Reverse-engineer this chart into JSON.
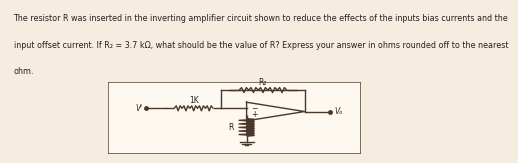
{
  "bg_color": "#f5ede0",
  "box_color": "#fdf8f0",
  "line_color": "#4a3828",
  "text_color": "#2a2020",
  "title_text_line1": "The resistor R was inserted in the inverting amplifier circuit shown to reduce the effects of the inputs bias currents and the",
  "title_text_line2": "input offset current. If R₂ = 3.7 kΩ, what should be the value of R? Express your answer in ohms rounded off to the nearest",
  "title_text_line3": "ohm.",
  "label_1k": "1K",
  "label_R2": "R₂",
  "label_R": "R",
  "label_Vi": "Vᴵ",
  "label_Vo": "Vₒ",
  "font_size_text": 5.8,
  "font_size_labels": 5.5,
  "lw": 1.0
}
